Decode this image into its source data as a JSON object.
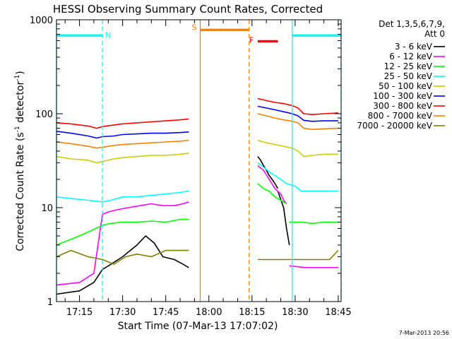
{
  "chart_data": {
    "type": "line",
    "title": "HESSI Observing Summary Count Rates, Corrected",
    "xlabel": "Start Time (07-Mar-13 17:07:02)",
    "ylabel_pre": "Corrected Count Rate (s",
    "ylabel_sup1": "-1",
    "ylabel_mid": " detector",
    "ylabel_sup2": "-1",
    "ylabel_post": ")",
    "footer": "7-Mar-2013 20:56",
    "yscale": "log",
    "ylim": [
      1,
      1000
    ],
    "xlim_minutes_after_17_00": [
      7,
      106
    ],
    "x_ticks": [
      {
        "label": "17:15",
        "minute": 15
      },
      {
        "label": "17:30",
        "minute": 30
      },
      {
        "label": "17:45",
        "minute": 45
      },
      {
        "label": "18:00",
        "minute": 60
      },
      {
        "label": "18:15",
        "minute": 75
      },
      {
        "label": "18:30",
        "minute": 90
      },
      {
        "label": "18:45",
        "minute": 105
      }
    ],
    "y_ticks": [
      {
        "label": "1",
        "value": 1
      },
      {
        "label": "10",
        "value": 10
      },
      {
        "label": "100",
        "value": 100
      },
      {
        "label": "1000",
        "value": 1000
      }
    ],
    "legend_header": [
      "Det 1,3,5,6,7,9,",
      "Att 0"
    ],
    "legend_position": "top-right",
    "series": [
      {
        "name": "3 - 6 keV",
        "color": "#000000",
        "segments": [
          {
            "x": [
              7,
              15,
              20,
              23,
              26,
              30,
              35,
              38,
              41,
              44,
              48,
              51,
              53
            ],
            "y": [
              1.2,
              1.3,
              1.6,
              2.2,
              2.5,
              3.0,
              4.0,
              5.0,
              4.2,
              3.0,
              2.8,
              2.5,
              2.3
            ]
          },
          {
            "x": [
              77,
              78,
              79,
              80,
              81,
              82,
              83,
              84
            ],
            "y": [
              35,
              32,
              28,
              25,
              22,
              20,
              18,
              16
            ]
          },
          {
            "x": [
              84,
              86,
              87,
              88
            ],
            "y": [
              15,
              10,
              6,
              4
            ]
          }
        ]
      },
      {
        "name": "6 - 12 keV",
        "color": "#ff00ff",
        "segments": [
          {
            "x": [
              7,
              15,
              20,
              23,
              25,
              28,
              32,
              36,
              40,
              44,
              48,
              51,
              53
            ],
            "y": [
              1.5,
              1.6,
              2.0,
              8.5,
              9.0,
              9.5,
              10.0,
              10.5,
              11.0,
              10.5,
              10.5,
              11.0,
              11.5
            ]
          },
          {
            "x": [
              77,
              79,
              81,
              83,
              85,
              86,
              87
            ],
            "y": [
              28,
              25,
              20,
              16,
              14,
              12,
              11
            ]
          },
          {
            "x": [
              88,
              94,
              100,
              105
            ],
            "y": [
              2.4,
              2.3,
              2.3,
              2.3
            ]
          }
        ]
      },
      {
        "name": "12 - 25 keV",
        "color": "#00ff00",
        "segments": [
          {
            "x": [
              7,
              15,
              18,
              23,
              26,
              30,
              35,
              40,
              45,
              50,
              53
            ],
            "y": [
              4.0,
              5.0,
              5.5,
              6.5,
              6.8,
              7.0,
              7.0,
              7.2,
              7.0,
              7.5,
              7.5
            ]
          },
          {
            "x": [
              77,
              79,
              81,
              83,
              85,
              87
            ],
            "y": [
              18,
              16,
              15,
              13,
              12,
              11
            ]
          },
          {
            "x": [
              88,
              92,
              96,
              100,
              105
            ],
            "y": [
              7.0,
              7.0,
              6.8,
              7.0,
              7.0
            ]
          }
        ]
      },
      {
        "name": "25 - 50 keV",
        "color": "#00ffff",
        "segments": [
          {
            "x": [
              7,
              12,
              18,
              23,
              26,
              30,
              35,
              40,
              45,
              50,
              53
            ],
            "y": [
              13,
              12.5,
              12,
              11.5,
              12,
              13,
              13,
              13.5,
              14,
              14.5,
              15
            ]
          },
          {
            "x": [
              77,
              79,
              81,
              83,
              85,
              87,
              90,
              92,
              96,
              100,
              105
            ],
            "y": [
              30,
              27,
              24,
              22,
              20,
              18,
              17,
              15,
              15,
              15,
              15
            ]
          }
        ]
      },
      {
        "name": "50 - 100 keV",
        "color": "#cccc00",
        "segments": [
          {
            "x": [
              7,
              12,
              18,
              21,
              23,
              27,
              30,
              35,
              40,
              45,
              50,
              53
            ],
            "y": [
              35,
              33,
              32,
              30,
              31,
              33,
              34,
              35,
              36,
              36,
              37,
              38
            ]
          },
          {
            "x": [
              77,
              80,
              83,
              86,
              89,
              91,
              93,
              96,
              100,
              105
            ],
            "y": [
              52,
              49,
              47,
              45,
              43,
              40,
              35,
              36,
              37,
              37
            ]
          }
        ]
      },
      {
        "name": "100 - 300 keV",
        "color": "#0000ff",
        "segments": [
          {
            "x": [
              7,
              12,
              18,
              21,
              23,
              27,
              30,
              35,
              40,
              45,
              50,
              53
            ],
            "y": [
              65,
              62,
              58,
              55,
              57,
              58,
              60,
              61,
              62,
              62,
              63,
              64
            ]
          },
          {
            "x": [
              77,
              80,
              83,
              86,
              89,
              91,
              93,
              96,
              100,
              105
            ],
            "y": [
              120,
              115,
              110,
              105,
              100,
              95,
              85,
              83,
              84,
              84
            ]
          }
        ]
      },
      {
        "name": "300 - 800 keV",
        "color": "#ff0000",
        "segments": [
          {
            "x": [
              7,
              12,
              18,
              21,
              23,
              27,
              30,
              35,
              40,
              45,
              50,
              53
            ],
            "y": [
              80,
              78,
              74,
              70,
              73,
              76,
              78,
              80,
              82,
              84,
              86,
              88
            ]
          },
          {
            "x": [
              77,
              80,
              83,
              86,
              89,
              91,
              93,
              96,
              100,
              105
            ],
            "y": [
              145,
              138,
              132,
              128,
              122,
              115,
              100,
              98,
              100,
              102
            ]
          }
        ]
      },
      {
        "name": "800 - 7000 keV",
        "color": "#ff8000",
        "segments": [
          {
            "x": [
              7,
              12,
              18,
              21,
              23,
              27,
              30,
              35,
              40,
              45,
              50,
              53
            ],
            "y": [
              50,
              48,
              45,
              43,
              44,
              46,
              47,
              48,
              49,
              50,
              51,
              52
            ]
          },
          {
            "x": [
              77,
              80,
              83,
              86,
              89,
              91,
              93,
              96,
              100,
              105
            ],
            "y": [
              100,
              95,
              90,
              86,
              83,
              80,
              70,
              68,
              69,
              70
            ]
          }
        ]
      },
      {
        "name": "7000 - 20000 keV",
        "color": "#808000",
        "segments": [
          {
            "x": [
              7,
              12,
              18,
              23,
              27,
              31,
              35,
              40,
              45,
              50,
              53
            ],
            "y": [
              3.0,
              3.5,
              3.0,
              2.8,
              2.5,
              3.0,
              3.2,
              3.0,
              3.5,
              3.5,
              3.5
            ]
          },
          {
            "x": [
              77,
              82,
              88,
              93,
              98,
              102,
              105
            ],
            "y": [
              2.8,
              2.8,
              2.8,
              2.8,
              2.8,
              2.8,
              3.5
            ]
          }
        ]
      }
    ],
    "flag_bars": [
      {
        "label": "N",
        "color": "#00ffff",
        "y": 680,
        "segments": [
          [
            7,
            23
          ],
          [
            89,
            106
          ]
        ]
      },
      {
        "label": "S",
        "color": "#ff8000",
        "y": 780,
        "segments": [
          [
            57,
            74
          ]
        ]
      },
      {
        "label": "F",
        "color": "#ff0000",
        "y": 590,
        "segments": [
          [
            77,
            84
          ]
        ]
      }
    ],
    "vlines": [
      {
        "x": 7,
        "color": "#00ffff",
        "style": "solid"
      },
      {
        "x": 23,
        "color": "#00ffff",
        "style": "dash"
      },
      {
        "x": 57,
        "color": "#ff8000",
        "style": "solid"
      },
      {
        "x": 74,
        "color": "#ff8000",
        "style": "dash"
      },
      {
        "x": 89,
        "color": "#00ffff",
        "style": "solid"
      },
      {
        "x": 106,
        "color": "#00ffff",
        "style": "dash"
      }
    ]
  }
}
